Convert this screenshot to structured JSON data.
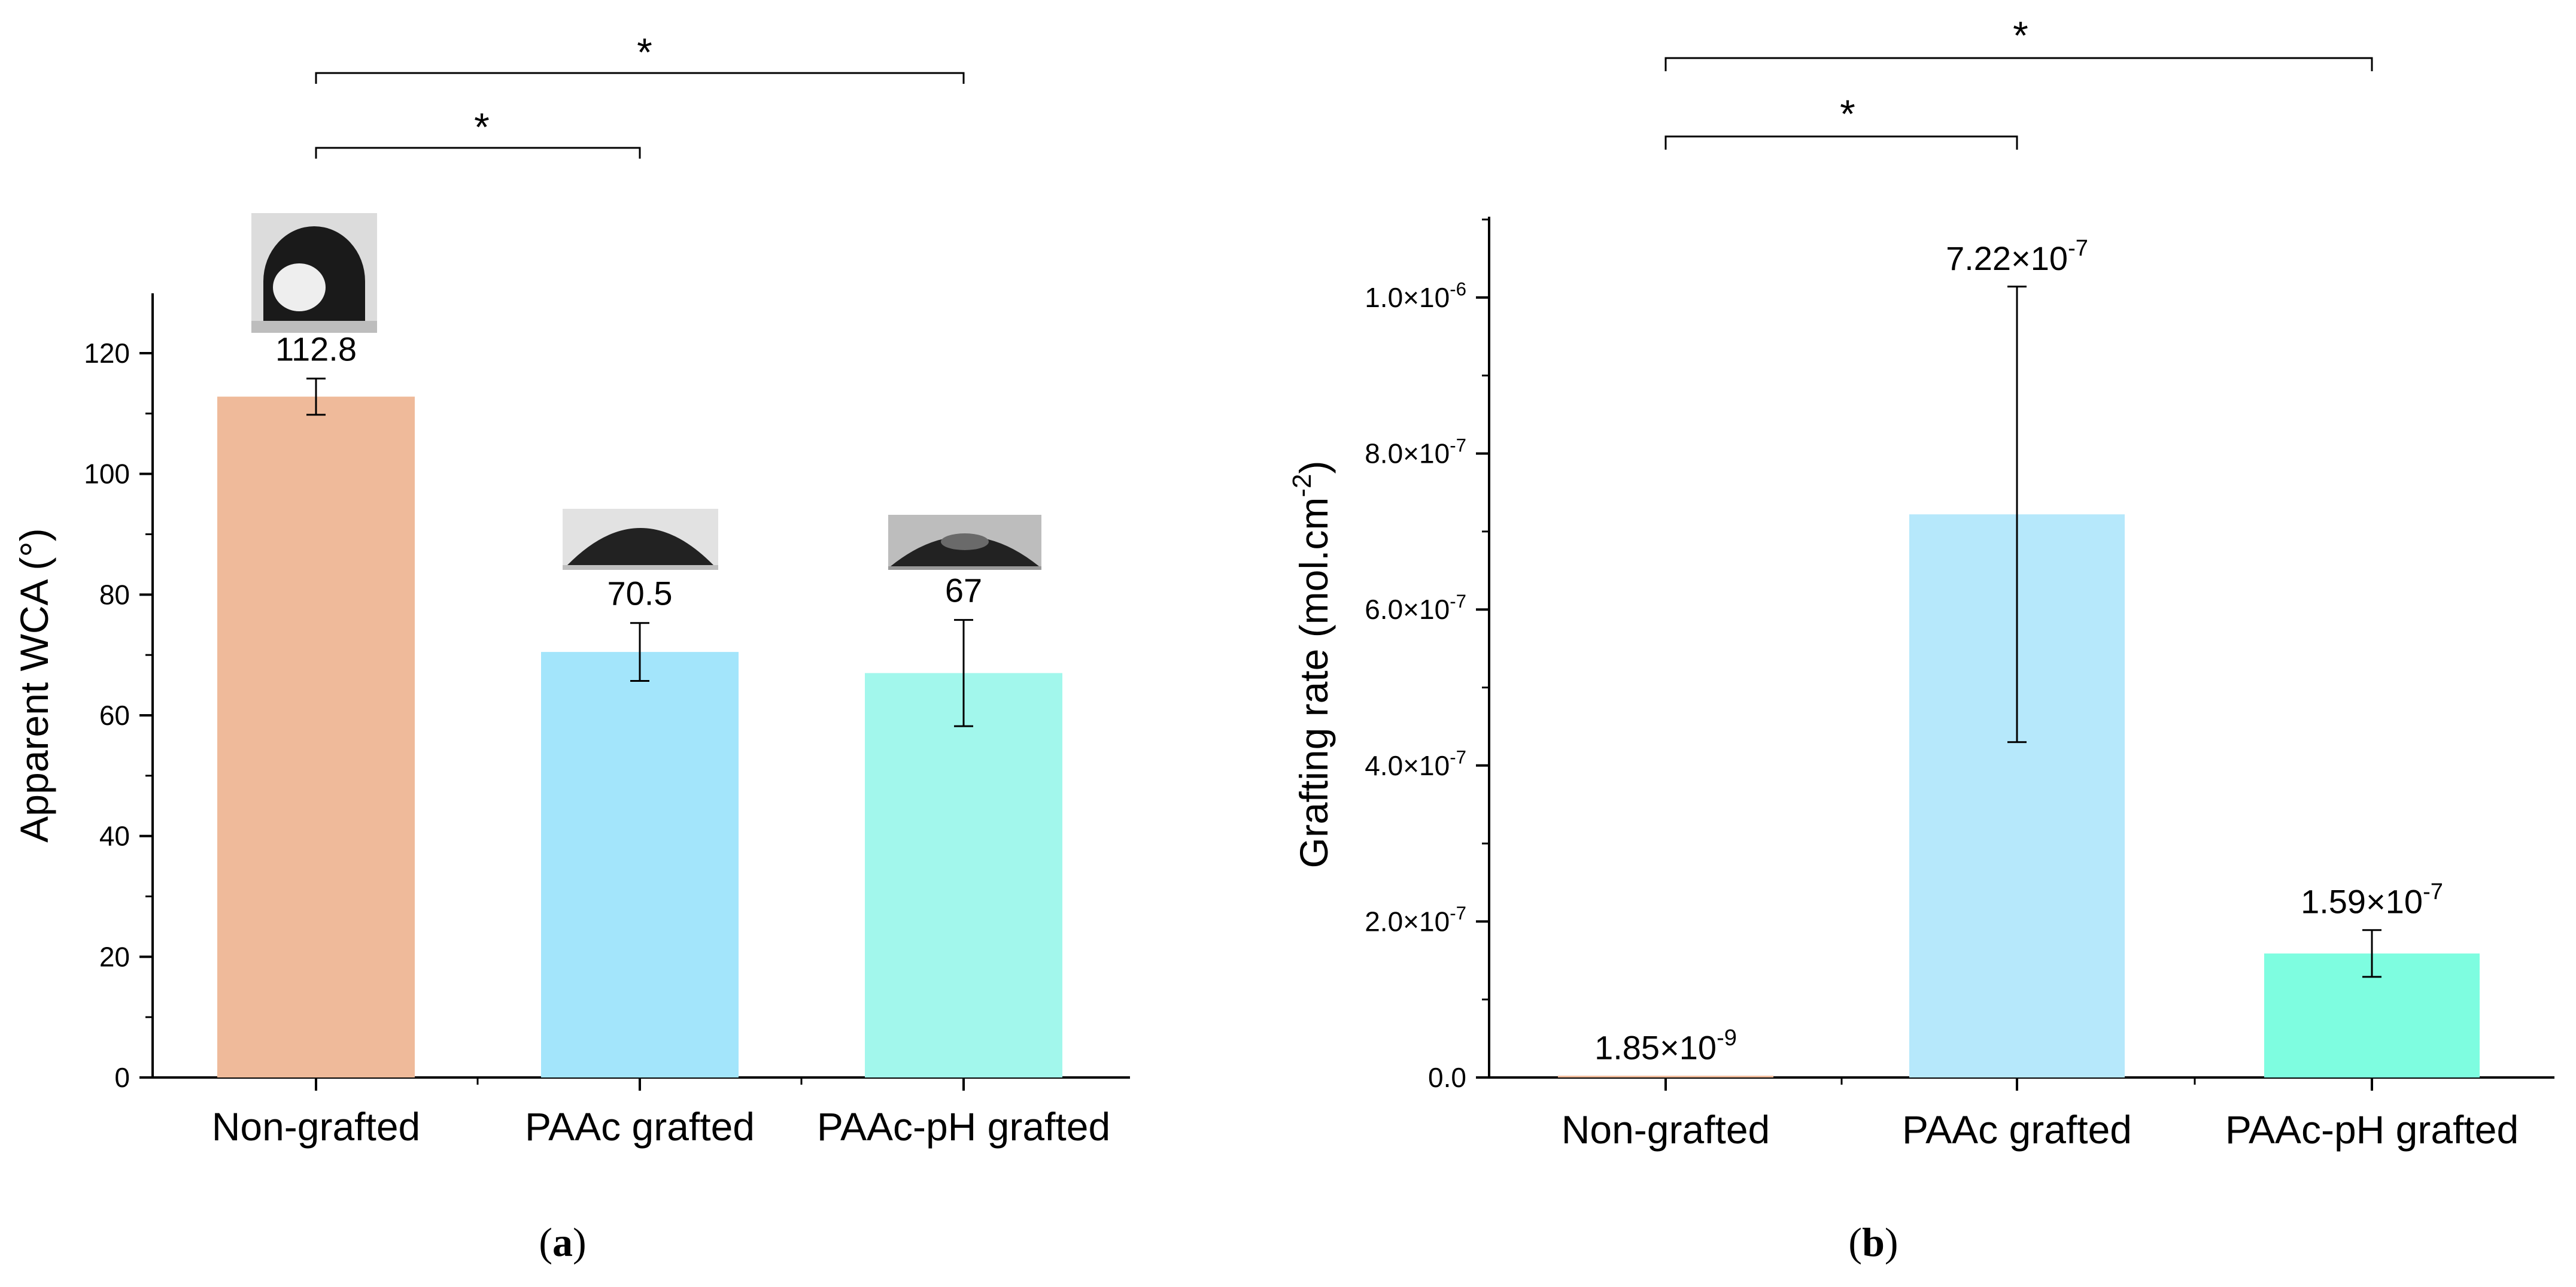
{
  "chart_data": [
    {
      "type": "bar",
      "panel_label": {
        "open": "(",
        "letter": "a",
        "close": ")"
      },
      "categories": [
        "Non-grafted",
        "PAAc grafted",
        "PAAc-pH grafted"
      ],
      "values": [
        112.8,
        70.5,
        67
      ],
      "errors": [
        3.0,
        4.8,
        8.8
      ],
      "value_labels": [
        "112.8",
        "70.5",
        "67"
      ],
      "colors": [
        "#efba9a",
        "#a3e5fb",
        "#a2f7ec"
      ],
      "ylabel": "Apparent WCA (°)",
      "ylim": [
        0,
        130
      ],
      "yticks": [
        0,
        20,
        40,
        60,
        80,
        100,
        120
      ],
      "ytick_labels": [
        "0",
        "20",
        "40",
        "60",
        "80",
        "100",
        "120"
      ],
      "significance": [
        {
          "from": 0,
          "to": 1,
          "label": "*"
        },
        {
          "from": 0,
          "to": 2,
          "label": "*"
        }
      ],
      "droplet_images": [
        "high-contact-angle-droplet",
        "medium-contact-angle-droplet",
        "low-contact-angle-droplet"
      ]
    },
    {
      "type": "bar",
      "panel_label": {
        "open": "(",
        "letter": "b",
        "close": ")"
      },
      "categories": [
        "Non-grafted",
        "PAAc grafted",
        "PAAc-pH grafted"
      ],
      "values": [
        1.85e-09,
        7.22e-07,
        1.59e-07
      ],
      "errors": [
        0,
        2.92e-07,
        3e-08
      ],
      "value_labels": [
        {
          "mantissa": "1.85×10",
          "exponent": "-9"
        },
        {
          "mantissa": "7.22×10",
          "exponent": "-7"
        },
        {
          "mantissa": "1.59×10",
          "exponent": "-7"
        }
      ],
      "colors": [
        "#efba9a",
        "#b6e8fb",
        "#7efde0"
      ],
      "ylabel": {
        "main": "Grafting rate (mol.cm",
        "sup": "-2",
        "end": ")"
      },
      "ylim": [
        0,
        1.1e-06
      ],
      "yticks": [
        0,
        2e-07,
        4e-07,
        6e-07,
        8e-07,
        1e-06
      ],
      "ytick_labels": [
        {
          "mantissa": "0.0",
          "exponent": ""
        },
        {
          "mantissa": "2.0×10",
          "exponent": "-7"
        },
        {
          "mantissa": "4.0×10",
          "exponent": "-7"
        },
        {
          "mantissa": "6.0×10",
          "exponent": "-7"
        },
        {
          "mantissa": "8.0×10",
          "exponent": "-7"
        },
        {
          "mantissa": "1.0×10",
          "exponent": "-6"
        }
      ],
      "significance": [
        {
          "from": 0,
          "to": 1,
          "label": "*"
        },
        {
          "from": 0,
          "to": 2,
          "label": "*"
        }
      ]
    }
  ]
}
